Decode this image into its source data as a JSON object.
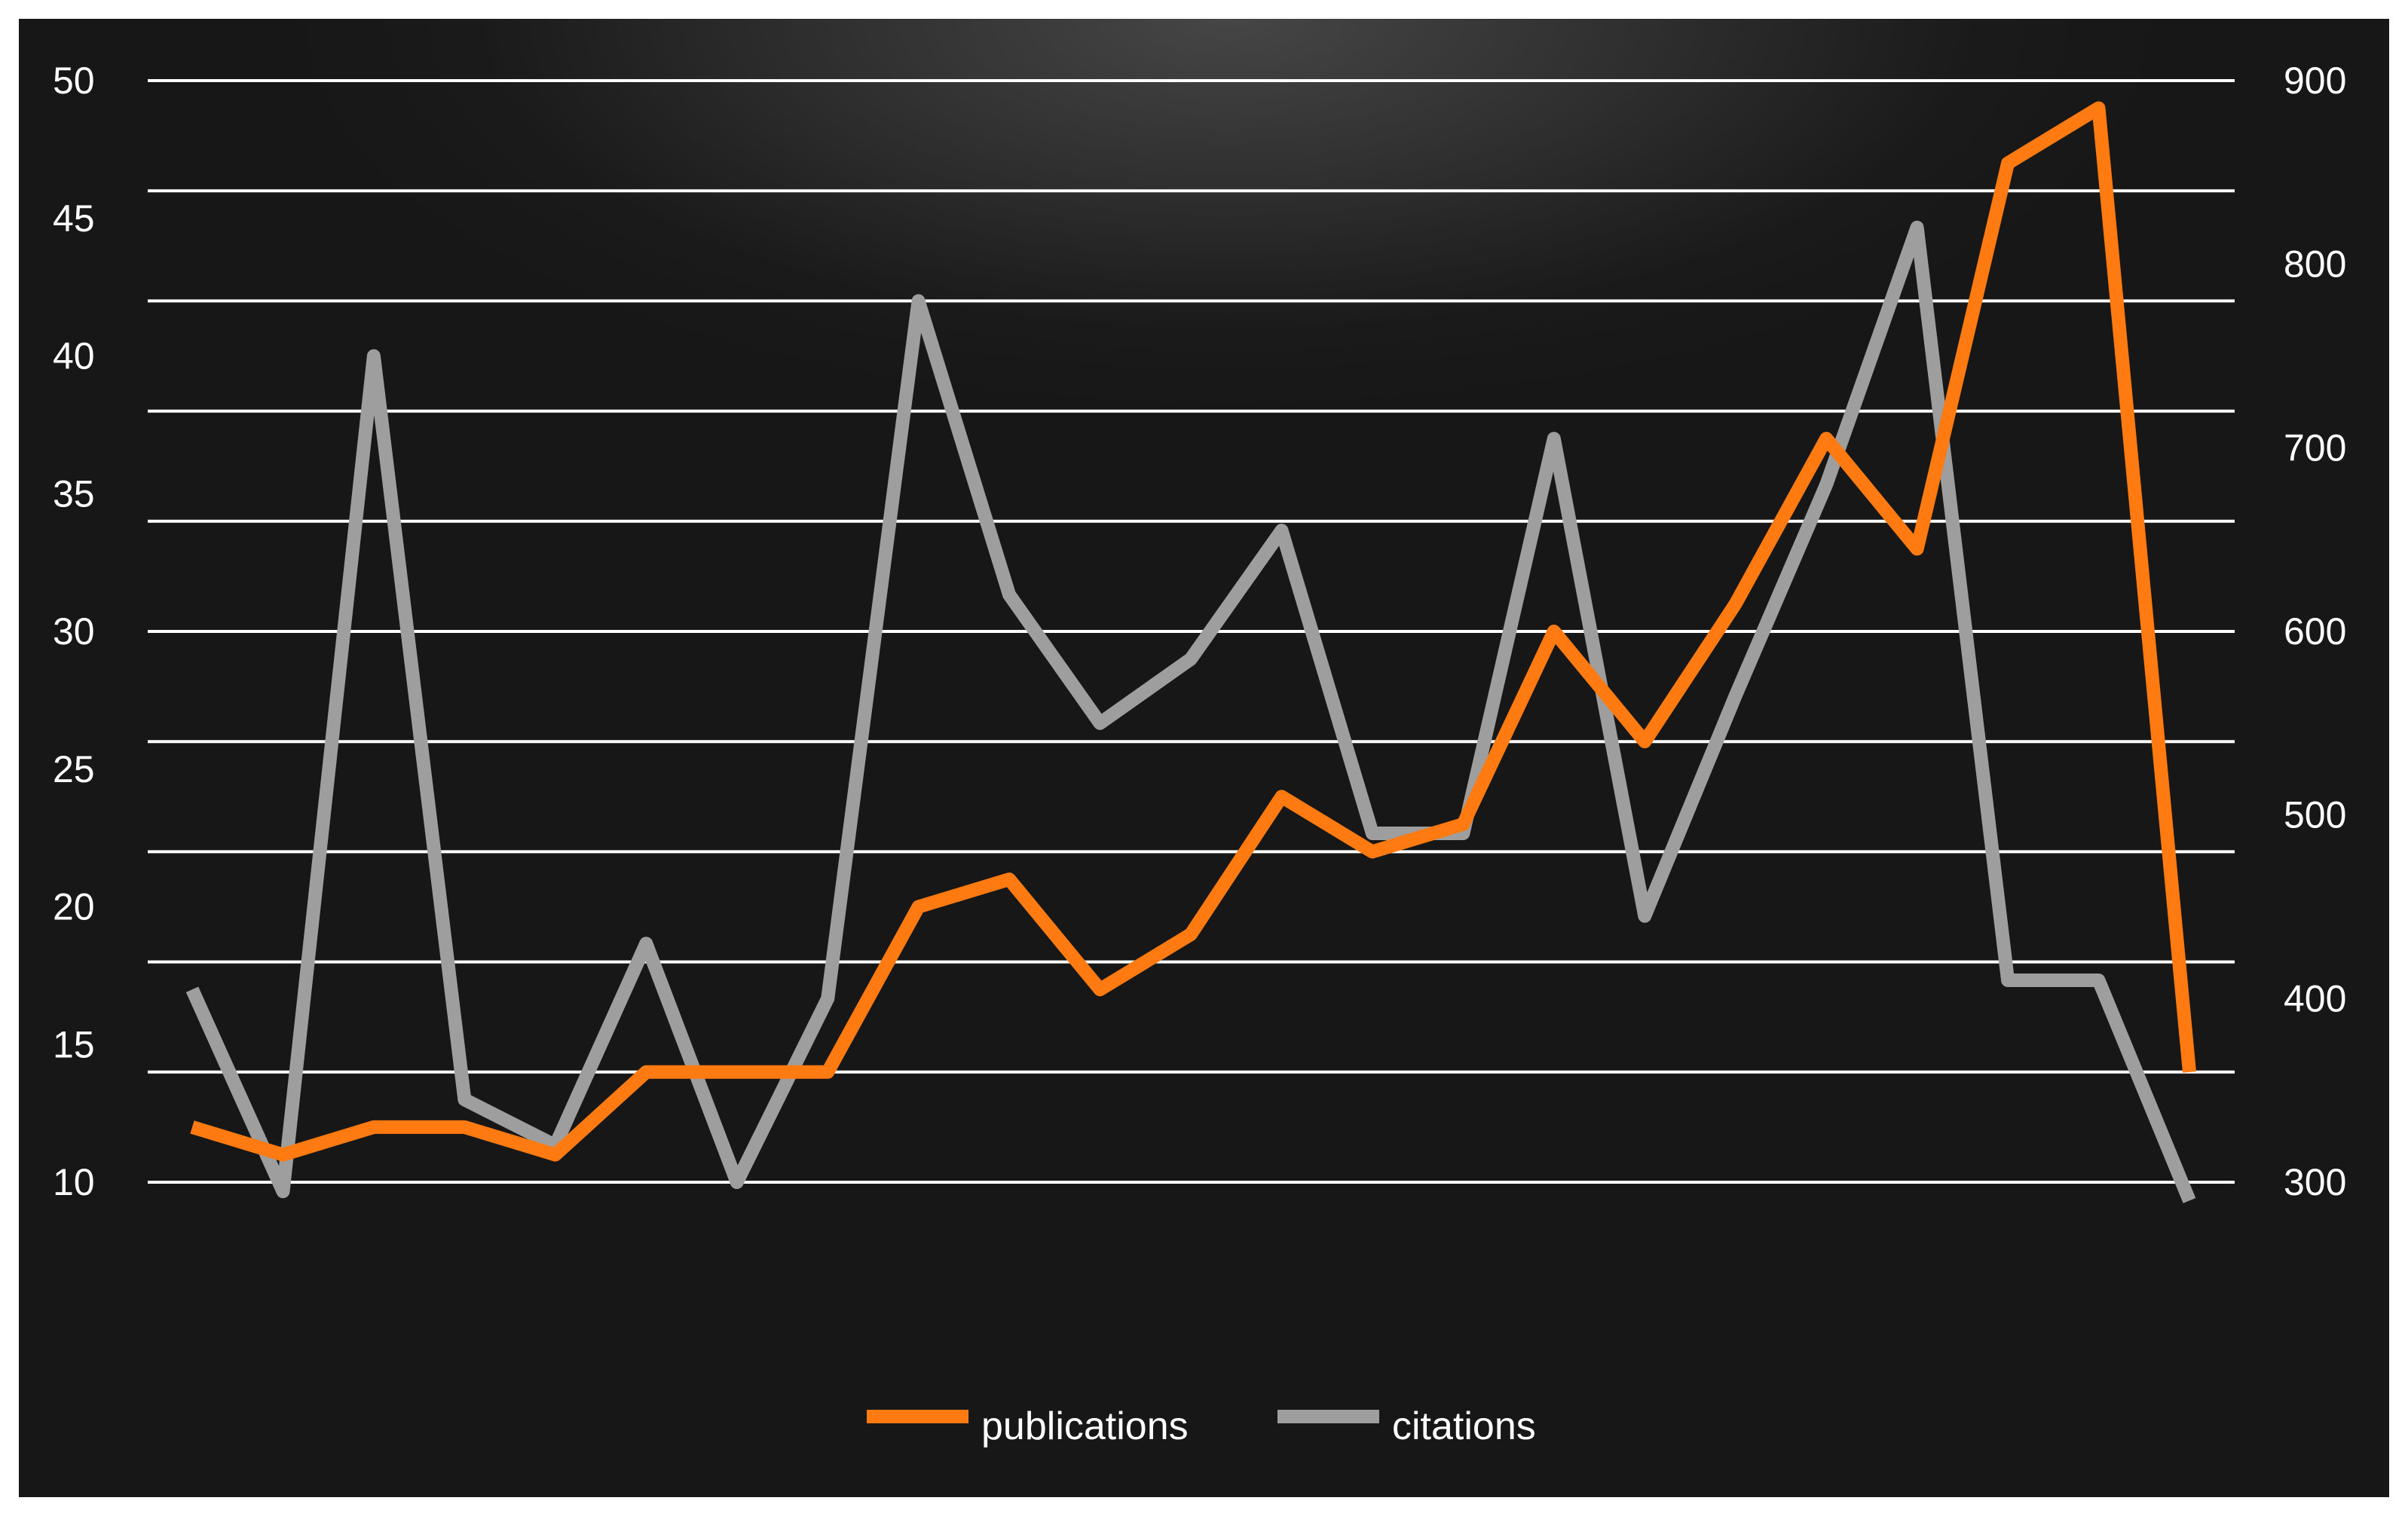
{
  "chart_data": {
    "type": "line",
    "title": "",
    "xlabel": "",
    "colors": {
      "publications": "#ff7a10",
      "citations": "#9e9e9e",
      "background": "#181818",
      "grid": "#ffffff",
      "text": "#ffffff"
    },
    "y_left": {
      "ylim": [
        10,
        50
      ],
      "ticks": [
        "10",
        "15",
        "20",
        "25",
        "30",
        "35",
        "40",
        "45",
        "50"
      ]
    },
    "y_right": {
      "ylim": [
        300,
        900
      ],
      "ticks": [
        "300",
        "400",
        "500",
        "600",
        "700",
        "800",
        "900"
      ]
    },
    "grid": true,
    "legend_position": "bottom-center",
    "series": [
      {
        "name": "publications",
        "axis": "left",
        "values": [
          12,
          11,
          12,
          12,
          11,
          14,
          14,
          14,
          20,
          21,
          17,
          19,
          24,
          22,
          23,
          30,
          26,
          31,
          37,
          33,
          47,
          49,
          14
        ]
      },
      {
        "name": "citations",
        "axis": "right",
        "values": [
          405,
          295,
          750,
          345,
          320,
          430,
          300,
          400,
          780,
          620,
          550,
          585,
          655,
          490,
          490,
          705,
          445,
          565,
          680,
          820,
          410,
          410,
          290
        ]
      }
    ]
  }
}
